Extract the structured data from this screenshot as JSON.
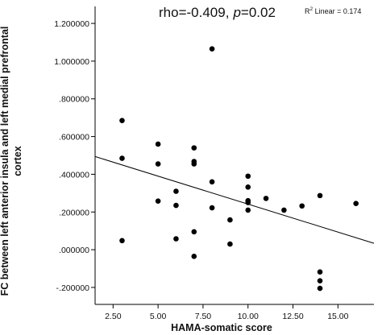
{
  "chart_data": {
    "type": "scatter",
    "xlabel": "HAMA-somatic score",
    "ylabel_lines": [
      "FC between left anterior insula and left medial prefrontal",
      "cortex"
    ],
    "xlim": [
      1.5,
      17.0
    ],
    "ylim": [
      -0.29,
      1.29
    ],
    "xticks": [
      2.5,
      5.0,
      7.5,
      10.0,
      12.5,
      15.0
    ],
    "xtick_labels": [
      "2.50",
      "5.00",
      "7.50",
      "10.00",
      "12.50",
      "15.00"
    ],
    "yticks": [
      -0.2,
      0.0,
      0.2,
      0.4,
      0.6,
      0.8,
      1.0,
      1.2
    ],
    "ytick_labels": [
      "-.200000",
      ".000000",
      ".200000",
      ".400000",
      ".600000",
      ".800000",
      "1.000000",
      "1.200000"
    ],
    "annotation": {
      "rho_label": "rho",
      "rho_value": "=-0.409,",
      "p_label": "p",
      "p_value": "=0.02"
    },
    "fit_label_prefix": "R",
    "fit_label_sup": "2",
    "fit_label_suffix": " Linear = 0.174",
    "fit_line": {
      "x": [
        1.5,
        17.0
      ],
      "y": [
        0.494,
        0.034
      ]
    },
    "points": [
      {
        "x": 3,
        "y": 0.685
      },
      {
        "x": 3,
        "y": 0.485
      },
      {
        "x": 3,
        "y": 0.048
      },
      {
        "x": 5,
        "y": 0.56
      },
      {
        "x": 5,
        "y": 0.455
      },
      {
        "x": 5,
        "y": 0.258
      },
      {
        "x": 6,
        "y": 0.31
      },
      {
        "x": 6,
        "y": 0.235
      },
      {
        "x": 6,
        "y": 0.058
      },
      {
        "x": 7,
        "y": 0.54
      },
      {
        "x": 7,
        "y": 0.468
      },
      {
        "x": 7,
        "y": 0.455
      },
      {
        "x": 7,
        "y": 0.095
      },
      {
        "x": 7,
        "y": -0.035
      },
      {
        "x": 8,
        "y": 1.065
      },
      {
        "x": 8,
        "y": 0.36
      },
      {
        "x": 8,
        "y": 0.222
      },
      {
        "x": 9,
        "y": 0.158
      },
      {
        "x": 9,
        "y": 0.03
      },
      {
        "x": 10,
        "y": 0.39
      },
      {
        "x": 10,
        "y": 0.332
      },
      {
        "x": 10,
        "y": 0.26
      },
      {
        "x": 10,
        "y": 0.25
      },
      {
        "x": 10,
        "y": 0.21
      },
      {
        "x": 11,
        "y": 0.272
      },
      {
        "x": 12,
        "y": 0.21
      },
      {
        "x": 13,
        "y": 0.232
      },
      {
        "x": 14,
        "y": 0.287
      },
      {
        "x": 14,
        "y": -0.118
      },
      {
        "x": 14,
        "y": -0.165
      },
      {
        "x": 14,
        "y": -0.205
      },
      {
        "x": 16,
        "y": 0.245
      }
    ],
    "colors": {
      "point": "#000000",
      "line": "#000000",
      "axis": "#000000"
    }
  }
}
